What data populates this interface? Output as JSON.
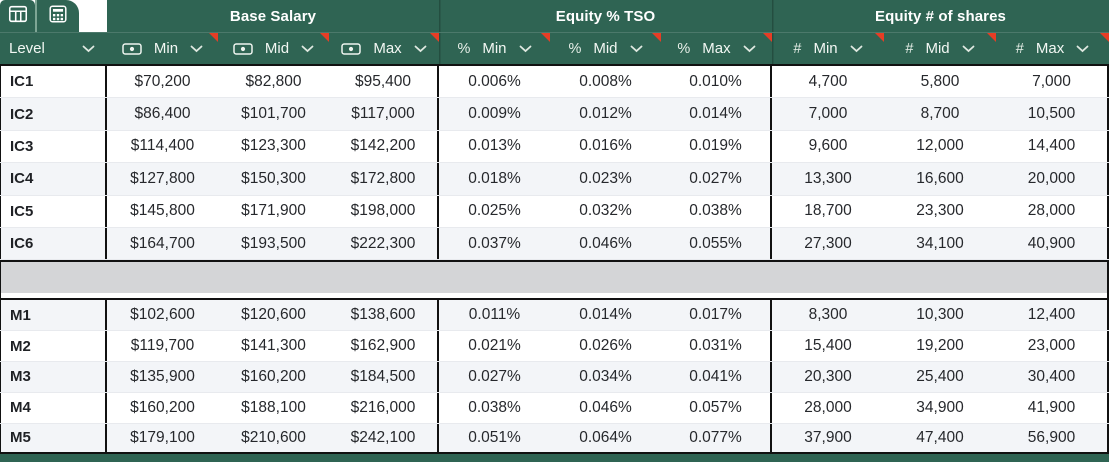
{
  "colors": {
    "header_green": "#2f6453",
    "note_triangle_red": "#e63d25",
    "separator_gray": "#d4d5d7",
    "row_shade": "#f3f5f8",
    "grid_border_black": "#111111"
  },
  "toolbar_tabs": [
    {
      "icon": "table-columns-icon"
    },
    {
      "icon": "spreadsheet-grid-icon"
    }
  ],
  "header": {
    "level_label": "Level",
    "groups": [
      {
        "label": "Base Salary",
        "type": "currency",
        "type_icon": "banknote-icon",
        "columns": [
          "Min",
          "Mid",
          "Max"
        ]
      },
      {
        "label": "Equity % TSO",
        "type": "percent",
        "glyph": "%",
        "columns": [
          "Min",
          "Mid",
          "Max"
        ]
      },
      {
        "label": "Equity # of shares",
        "type": "number",
        "glyph": "#",
        "columns": [
          "Min",
          "Mid",
          "Max"
        ]
      }
    ]
  },
  "rows": {
    "ic": [
      {
        "level": "IC1",
        "base": [
          "$70,200",
          "$82,800",
          "$95,400"
        ],
        "equity_pct": [
          "0.006%",
          "0.008%",
          "0.010%"
        ],
        "shares": [
          "4,700",
          "5,800",
          "7,000"
        ]
      },
      {
        "level": "IC2",
        "base": [
          "$86,400",
          "$101,700",
          "$117,000"
        ],
        "equity_pct": [
          "0.009%",
          "0.012%",
          "0.014%"
        ],
        "shares": [
          "7,000",
          "8,700",
          "10,500"
        ]
      },
      {
        "level": "IC3",
        "base": [
          "$114,400",
          "$123,300",
          "$142,200"
        ],
        "equity_pct": [
          "0.013%",
          "0.016%",
          "0.019%"
        ],
        "shares": [
          "9,600",
          "12,000",
          "14,400"
        ]
      },
      {
        "level": "IC4",
        "base": [
          "$127,800",
          "$150,300",
          "$172,800"
        ],
        "equity_pct": [
          "0.018%",
          "0.023%",
          "0.027%"
        ],
        "shares": [
          "13,300",
          "16,600",
          "20,000"
        ]
      },
      {
        "level": "IC5",
        "base": [
          "$145,800",
          "$171,900",
          "$198,000"
        ],
        "equity_pct": [
          "0.025%",
          "0.032%",
          "0.038%"
        ],
        "shares": [
          "18,700",
          "23,300",
          "28,000"
        ]
      },
      {
        "level": "IC6",
        "base": [
          "$164,700",
          "$193,500",
          "$222,300"
        ],
        "equity_pct": [
          "0.037%",
          "0.046%",
          "0.055%"
        ],
        "shares": [
          "27,300",
          "34,100",
          "40,900"
        ]
      }
    ],
    "m": [
      {
        "level": "M1",
        "base": [
          "$102,600",
          "$120,600",
          "$138,600"
        ],
        "equity_pct": [
          "0.011%",
          "0.014%",
          "0.017%"
        ],
        "shares": [
          "8,300",
          "10,300",
          "12,400"
        ]
      },
      {
        "level": "M2",
        "base": [
          "$119,700",
          "$141,300",
          "$162,900"
        ],
        "equity_pct": [
          "0.021%",
          "0.026%",
          "0.031%"
        ],
        "shares": [
          "15,400",
          "19,200",
          "23,000"
        ]
      },
      {
        "level": "M3",
        "base": [
          "$135,900",
          "$160,200",
          "$184,500"
        ],
        "equity_pct": [
          "0.027%",
          "0.034%",
          "0.041%"
        ],
        "shares": [
          "20,300",
          "25,400",
          "30,400"
        ]
      },
      {
        "level": "M4",
        "base": [
          "$160,200",
          "$188,100",
          "$216,000"
        ],
        "equity_pct": [
          "0.038%",
          "0.046%",
          "0.057%"
        ],
        "shares": [
          "28,000",
          "34,900",
          "41,900"
        ]
      },
      {
        "level": "M5",
        "base": [
          "$179,100",
          "$210,600",
          "$242,100"
        ],
        "equity_pct": [
          "0.051%",
          "0.064%",
          "0.077%"
        ],
        "shares": [
          "37,900",
          "47,400",
          "56,900"
        ]
      }
    ]
  }
}
